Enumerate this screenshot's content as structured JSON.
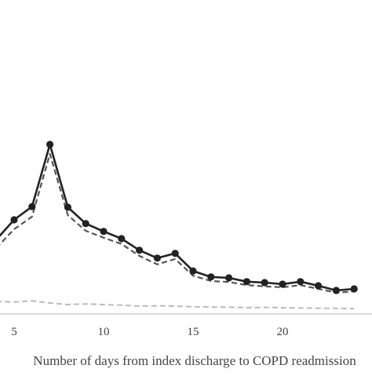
{
  "chart_data": {
    "type": "line",
    "xlabel": "Number of days from index discharge to COPD readmission",
    "x_ticks": [
      5,
      10,
      15,
      20
    ],
    "xlim": [
      0,
      25
    ],
    "ylim": [
      0,
      1
    ],
    "grid": false,
    "series": [
      {
        "style": "solid-markers",
        "color": "#222222",
        "x": [
          4,
          5,
          6,
          7,
          8,
          9,
          10,
          11,
          12,
          13,
          14,
          15,
          16,
          17,
          18,
          19,
          20,
          21,
          22,
          23,
          24
        ],
        "y": [
          0.237,
          0.3,
          0.342,
          0.54,
          0.34,
          0.288,
          0.263,
          0.24,
          0.203,
          0.178,
          0.193,
          0.137,
          0.118,
          0.115,
          0.103,
          0.1,
          0.095,
          0.103,
          0.09,
          0.075,
          0.08
        ]
      },
      {
        "style": "dashed",
        "color": "#555555",
        "x": [
          4,
          5,
          6,
          7,
          8,
          9,
          10,
          11,
          12,
          13,
          14,
          15,
          16,
          17,
          18,
          19,
          20,
          21,
          22,
          23,
          24
        ],
        "y": [
          0.21,
          0.27,
          0.31,
          0.51,
          0.315,
          0.265,
          0.243,
          0.223,
          0.185,
          0.158,
          0.175,
          0.122,
          0.105,
          0.102,
          0.092,
          0.088,
          0.085,
          0.092,
          0.08,
          0.068,
          0.072
        ]
      },
      {
        "style": "dashed-light",
        "color": "#bbbbbb",
        "x": [
          4,
          5,
          6,
          7,
          8,
          9,
          10,
          11,
          12,
          13,
          14,
          15,
          16,
          17,
          18,
          19,
          20,
          21,
          22,
          23,
          24
        ],
        "y": [
          0.04,
          0.038,
          0.042,
          0.035,
          0.03,
          0.032,
          0.03,
          0.028,
          0.025,
          0.026,
          0.025,
          0.023,
          0.022,
          0.022,
          0.02,
          0.021,
          0.02,
          0.019,
          0.018,
          0.018,
          0.017
        ]
      }
    ]
  }
}
